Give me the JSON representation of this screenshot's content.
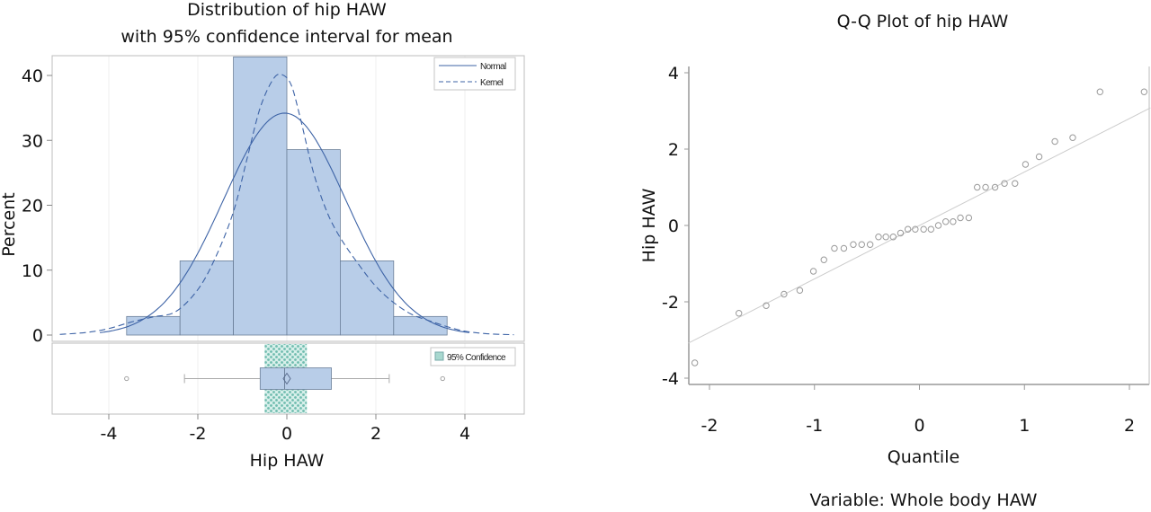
{
  "chart_data": [
    {
      "type": "bar",
      "subtype": "histogram-with-density-and-boxplot",
      "title": "Distribution of hip HAW",
      "subtitle": "with 95% confidence interval for mean",
      "xlabel": "Hip HAW",
      "ylabel": "Percent",
      "xlim": [
        -5.2,
        5.2
      ],
      "ylim": [
        0,
        43
      ],
      "xticks": [
        -4,
        -2,
        0,
        2,
        4
      ],
      "yticks": [
        0,
        10,
        20,
        30,
        40
      ],
      "grid": "vertical",
      "bins": [
        {
          "from": -3.6,
          "to": -2.4,
          "value": 2.86
        },
        {
          "from": -2.4,
          "to": -1.2,
          "value": 11.43
        },
        {
          "from": -1.2,
          "to": 0.0,
          "value": 42.86
        },
        {
          "from": 0.0,
          "to": 1.2,
          "value": 28.57
        },
        {
          "from": 1.2,
          "to": 2.4,
          "value": 11.43
        },
        {
          "from": 2.4,
          "to": 3.6,
          "value": 2.86
        }
      ],
      "normal_curve": {
        "mean": -0.05,
        "sd": 1.38,
        "peak_percent": 34.2,
        "x_range": [
          -4.2,
          4.1
        ]
      },
      "kernel_curve": {
        "x": [
          -5.1,
          -4.5,
          -4.0,
          -3.5,
          -3.0,
          -2.5,
          -2.0,
          -1.6,
          -1.2,
          -0.9,
          -0.6,
          -0.3,
          -0.1,
          0.1,
          0.3,
          0.6,
          0.9,
          1.2,
          1.6,
          2.0,
          2.4,
          2.8,
          3.2,
          3.6,
          4.0,
          4.5,
          5.1
        ],
        "y": [
          0.1,
          0.4,
          1.0,
          2.0,
          2.8,
          3.6,
          7.0,
          12.0,
          19.0,
          27.0,
          35.0,
          39.5,
          40.1,
          38.5,
          33.5,
          25.0,
          19.0,
          15.0,
          11.0,
          7.5,
          5.0,
          3.2,
          2.2,
          1.3,
          0.6,
          0.2,
          0.05
        ]
      },
      "legend": {
        "position": "top-right",
        "entries": [
          {
            "label": "Normal",
            "style": "solid"
          },
          {
            "label": "Kernel",
            "style": "dashed"
          }
        ]
      },
      "boxplot": {
        "min_whisker": -2.3,
        "q1": -0.6,
        "median": -0.05,
        "mean": 0.0,
        "q3": 1.0,
        "max_whisker": 2.3,
        "outliers": [
          -3.6,
          3.5
        ],
        "ci_mean": [
          -0.5,
          0.45
        ],
        "legend": {
          "position": "top-right",
          "label": "95% Confidence"
        }
      },
      "colors": {
        "bar_fill": "#b8cde8",
        "bar_edge": "#6b7f99",
        "curve": "#3d63a6",
        "ci_fill": "#7fc4b8"
      }
    },
    {
      "type": "scatter",
      "subtype": "qq-plot",
      "title": "Q-Q Plot of hip HAW",
      "xlabel": "Quantile",
      "ylabel": "Hip HAW",
      "footnote": "Variable: Whole body HAW",
      "xlim": [
        -2.2,
        2.2
      ],
      "ylim": [
        -4.2,
        4.1
      ],
      "xticks": [
        -2,
        -1,
        0,
        1,
        2
      ],
      "yticks": [
        -4,
        -2,
        0,
        2,
        4
      ],
      "reference_line": {
        "intercept": 0.0,
        "slope": 1.4
      },
      "points": {
        "x": [
          -2.14,
          -1.72,
          -1.46,
          -1.29,
          -1.14,
          -1.01,
          -0.91,
          -0.81,
          -0.72,
          -0.63,
          -0.55,
          -0.47,
          -0.39,
          -0.32,
          -0.25,
          -0.18,
          -0.11,
          -0.04,
          0.04,
          0.11,
          0.18,
          0.25,
          0.32,
          0.39,
          0.47,
          0.55,
          0.63,
          0.72,
          0.81,
          0.91,
          1.01,
          1.14,
          1.29,
          1.46,
          1.72,
          2.14
        ],
        "y": [
          -3.6,
          -2.3,
          -2.1,
          -1.8,
          -1.7,
          -1.2,
          -0.9,
          -0.6,
          -0.6,
          -0.5,
          -0.5,
          -0.5,
          -0.3,
          -0.3,
          -0.3,
          -0.2,
          -0.1,
          -0.1,
          -0.1,
          -0.1,
          0.0,
          0.1,
          0.1,
          0.2,
          0.2,
          1.0,
          1.0,
          1.0,
          1.1,
          1.1,
          1.6,
          1.8,
          2.2,
          2.3,
          3.5,
          3.5
        ]
      },
      "colors": {
        "marker": "#9a9a9a",
        "line": "#cccccc"
      }
    }
  ]
}
